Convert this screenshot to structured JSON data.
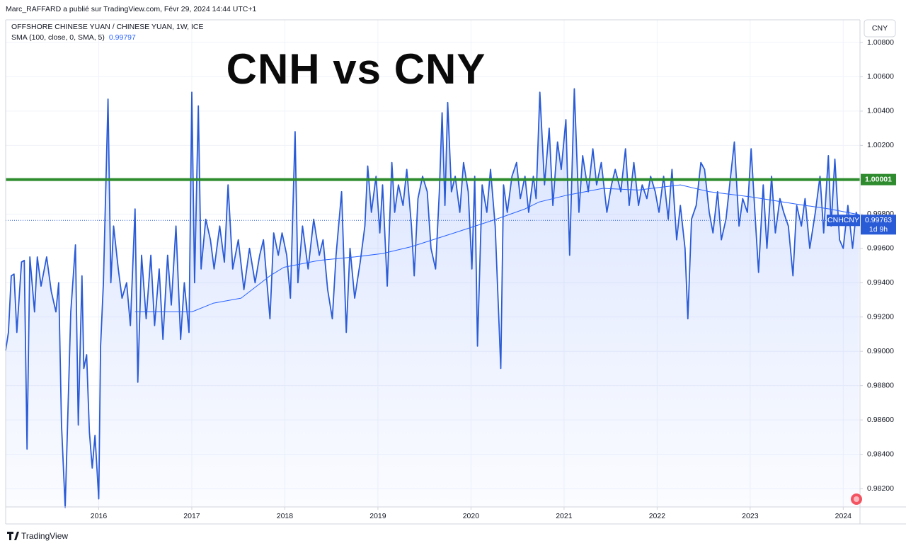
{
  "header": {
    "publisher": "Marc_RAFFARD a publié sur TradingView.com, Févr 29, 2024 14:44 UTC+1",
    "symbol": "OFFSHORE CHINESE YUAN / CHINESE YUAN, 1W, ICE",
    "currency": "CNY",
    "brand": "TradingView"
  },
  "chart_data": {
    "type": "line",
    "title": "CNH vs CNY",
    "x": [
      2015.0,
      2015.03,
      2015.06,
      2015.09,
      2015.12,
      2015.17,
      2015.2,
      2015.23,
      2015.26,
      2015.31,
      2015.34,
      2015.38,
      2015.44,
      2015.49,
      2015.54,
      2015.57,
      2015.6,
      2015.64,
      2015.7,
      2015.75,
      2015.78,
      2015.82,
      2015.84,
      2015.87,
      2015.9,
      2015.93,
      2015.96,
      2016.0,
      2016.02,
      2016.05,
      2016.1,
      2016.13,
      2016.16,
      2016.21,
      2016.25,
      2016.3,
      2016.34,
      2016.39,
      2016.42,
      2016.46,
      2016.51,
      2016.56,
      2016.6,
      2016.65,
      2016.69,
      2016.74,
      2016.78,
      2016.83,
      2016.88,
      2016.92,
      2016.97,
      2017.0,
      2017.03,
      2017.07,
      2017.1,
      2017.15,
      2017.2,
      2017.24,
      2017.3,
      2017.35,
      2017.39,
      2017.44,
      2017.5,
      2017.56,
      2017.62,
      2017.68,
      2017.73,
      2017.77,
      2017.84,
      2017.88,
      2017.93,
      2017.97,
      2018.02,
      2018.06,
      2018.11,
      2018.14,
      2018.19,
      2018.25,
      2018.31,
      2018.37,
      2018.41,
      2018.46,
      2018.51,
      2018.55,
      2018.61,
      2018.66,
      2018.7,
      2018.75,
      2018.81,
      2018.86,
      2018.89,
      2018.93,
      2018.98,
      2019.02,
      2019.05,
      2019.1,
      2019.15,
      2019.18,
      2019.22,
      2019.27,
      2019.31,
      2019.36,
      2019.39,
      2019.43,
      2019.48,
      2019.53,
      2019.57,
      2019.62,
      2019.66,
      2019.69,
      2019.72,
      2019.75,
      2019.79,
      2019.83,
      2019.88,
      2019.92,
      2019.97,
      2020.01,
      2020.04,
      2020.07,
      2020.12,
      2020.17,
      2020.21,
      2020.26,
      2020.32,
      2020.35,
      2020.39,
      2020.44,
      2020.49,
      2020.53,
      2020.58,
      2020.62,
      2020.67,
      2020.7,
      2020.74,
      2020.79,
      2020.84,
      2020.88,
      2020.93,
      2020.97,
      2021.02,
      2021.06,
      2021.11,
      2021.16,
      2021.2,
      2021.26,
      2021.31,
      2021.35,
      2021.4,
      2021.46,
      2021.51,
      2021.55,
      2021.61,
      2021.66,
      2021.7,
      2021.75,
      2021.8,
      2021.84,
      2021.89,
      2021.93,
      2021.98,
      2022.02,
      2022.07,
      2022.12,
      2022.16,
      2022.21,
      2022.25,
      2022.3,
      2022.33,
      2022.37,
      2022.42,
      2022.47,
      2022.51,
      2022.56,
      2022.6,
      2022.65,
      2022.69,
      2022.74,
      2022.79,
      2022.83,
      2022.88,
      2022.92,
      2022.97,
      2023.01,
      2023.06,
      2023.09,
      2023.14,
      2023.18,
      2023.23,
      2023.27,
      2023.32,
      2023.36,
      2023.41,
      2023.46,
      2023.5,
      2023.55,
      2023.59,
      2023.64,
      2023.7,
      2023.75,
      2023.79,
      2023.84,
      2023.87,
      2023.91,
      2023.96,
      2024.0,
      2024.05,
      2024.1,
      2024.14,
      2024.17
    ],
    "xlim": [
      2015.0,
      2024.18
    ],
    "xticks": [
      2016,
      2017,
      2018,
      2019,
      2020,
      2021,
      2022,
      2023,
      2024
    ],
    "ylim": [
      0.98093,
      1.00932
    ],
    "yticks": [
      {
        "value": 0.982,
        "label": "0.98200"
      },
      {
        "value": 0.984,
        "label": "0.98400"
      },
      {
        "value": 0.986,
        "label": "0.98600"
      },
      {
        "value": 0.988,
        "label": "0.98800"
      },
      {
        "value": 0.99,
        "label": "0.99000"
      },
      {
        "value": 0.992,
        "label": "0.99200"
      },
      {
        "value": 0.994,
        "label": "0.99400"
      },
      {
        "value": 0.996,
        "label": "0.99600"
      },
      {
        "value": 0.998,
        "label": "0.99800"
      },
      {
        "value": 1.0,
        "label": "1.00000"
      },
      {
        "value": 1.002,
        "label": "1.00200"
      },
      {
        "value": 1.004,
        "label": "1.00400"
      },
      {
        "value": 1.006,
        "label": "1.00600"
      },
      {
        "value": 1.008,
        "label": "1.00800"
      }
    ],
    "grid": true,
    "series": [
      {
        "name": "CNHCNY",
        "color": "#2a5bd7",
        "values": [
          0.99005,
          0.9911,
          0.9944,
          0.9945,
          0.9911,
          0.9952,
          0.9953,
          0.9843,
          0.9955,
          0.9923,
          0.9955,
          0.9938,
          0.9955,
          0.9935,
          0.9923,
          0.994,
          0.9857,
          0.9809,
          0.9923,
          0.9962,
          0.9857,
          0.9944,
          0.989,
          0.9898,
          0.9853,
          0.9832,
          0.9851,
          0.9814,
          0.9903,
          0.994,
          1.0047,
          0.994,
          0.9973,
          0.9948,
          0.9931,
          0.994,
          0.9915,
          0.9983,
          0.9882,
          0.9956,
          0.9919,
          0.9956,
          0.9915,
          0.9948,
          0.9907,
          0.9956,
          0.9927,
          0.9973,
          0.9907,
          0.994,
          0.9911,
          1.0051,
          0.994,
          1.0043,
          0.9948,
          0.9977,
          0.9965,
          0.9948,
          0.9973,
          0.9952,
          0.9997,
          0.9948,
          0.9965,
          0.9936,
          0.996,
          0.994,
          0.9956,
          0.9965,
          0.9919,
          0.9969,
          0.9956,
          0.9969,
          0.9956,
          0.9931,
          1.0028,
          0.994,
          0.9973,
          0.9948,
          0.9977,
          0.9956,
          0.9965,
          0.9936,
          0.9919,
          0.9956,
          0.9993,
          0.9911,
          0.996,
          0.9931,
          0.9952,
          0.9973,
          1.0008,
          0.9981,
          1.0002,
          0.9969,
          0.9997,
          0.9938,
          1.001,
          0.9981,
          0.9997,
          0.9985,
          1.0006,
          0.9973,
          0.9944,
          0.9989,
          1.0002,
          0.9993,
          0.996,
          0.9948,
          0.9993,
          1.0039,
          0.9985,
          1.0045,
          0.9993,
          1.0002,
          0.9981,
          1.001,
          0.9993,
          0.9948,
          1.0002,
          0.9903,
          0.9997,
          0.9981,
          1.0006,
          0.9973,
          0.989,
          0.9997,
          0.9981,
          1.0002,
          1.001,
          0.9989,
          1.0002,
          0.9981,
          1.0002,
          0.9989,
          1.0051,
          0.9997,
          1.003,
          0.9985,
          1.0022,
          1.0006,
          1.0035,
          0.9956,
          1.0053,
          0.9981,
          1.0014,
          0.9993,
          1.0018,
          0.9997,
          1.001,
          0.9981,
          0.9997,
          1.0006,
          0.9993,
          1.0018,
          0.9985,
          1.001,
          0.9985,
          0.9997,
          0.9989,
          1.0002,
          0.9993,
          0.9981,
          1.0002,
          0.9977,
          1.0006,
          0.9965,
          0.9985,
          0.996,
          0.9919,
          0.9977,
          0.9985,
          1.001,
          1.0006,
          0.9981,
          0.9969,
          0.9993,
          0.9965,
          0.9977,
          1.0002,
          1.0022,
          0.9973,
          0.9989,
          0.9981,
          1.0018,
          0.9973,
          0.9946,
          0.9997,
          0.996,
          1.0002,
          0.9969,
          0.9989,
          0.9981,
          0.9973,
          0.9944,
          0.9985,
          0.9973,
          0.9989,
          0.996,
          0.9981,
          1.0002,
          0.9969,
          1.0014,
          0.9973,
          1.0012,
          0.9965,
          0.996,
          0.9985,
          0.996,
          0.9981,
          0.99763
        ],
        "last_value": 0.99763,
        "countdown": "1d 9h"
      },
      {
        "name": "SMA (100, close, 0, SMA, 5)",
        "color": "#2962ff",
        "x": [
          2016.39,
          2017.0,
          2017.23,
          2017.53,
          2017.84,
          2017.99,
          2018.37,
          2018.75,
          2019.05,
          2019.36,
          2019.82,
          2020.27,
          2020.58,
          2020.73,
          2021.03,
          2021.42,
          2021.8,
          2022.25,
          2022.56,
          2023.01,
          2023.47,
          2023.85,
          2024.17
        ],
        "values": [
          0.9923,
          0.9923,
          0.9928,
          0.9931,
          0.9944,
          0.9949,
          0.9953,
          0.9955,
          0.9957,
          0.9961,
          0.9969,
          0.9977,
          0.9983,
          0.9987,
          0.9991,
          0.9995,
          0.9994,
          0.9997,
          0.9993,
          0.999,
          0.9986,
          0.9983,
          0.99797
        ],
        "last_value": 0.99797
      }
    ],
    "hline": {
      "value": 1.00001,
      "color": "#2e8b2e"
    }
  }
}
